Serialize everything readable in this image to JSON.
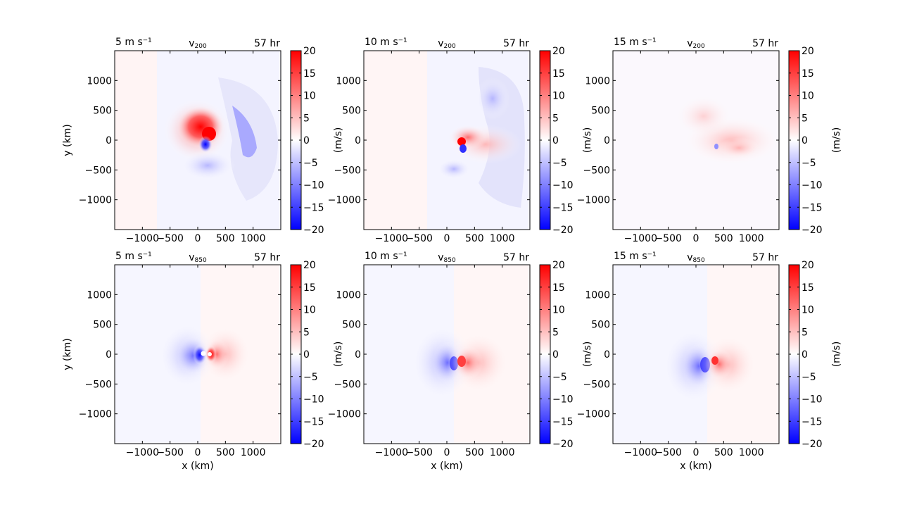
{
  "colorbar": {
    "unit_label": "(m/s)",
    "ticks": [
      20,
      15,
      10,
      5,
      0,
      -5,
      -10,
      -15,
      -20
    ],
    "range": [
      -20,
      20
    ],
    "colormap": "bwr",
    "colors": {
      "min": "#0000ff",
      "mid": "#ffffff",
      "max": "#ff0000"
    }
  },
  "axes": {
    "x_label": "x (km)",
    "y_label": "y (km)",
    "x_ticks": [
      "−1000",
      "−500",
      "0",
      "500",
      "1000"
    ],
    "y_ticks": [
      "1000",
      "500",
      "0",
      "−500",
      "−1000"
    ],
    "xlim": [
      -1500,
      1500
    ],
    "ylim": [
      -1500,
      1500
    ]
  },
  "chart_data": [
    {
      "type": "heatmap",
      "row": 0,
      "col": 0,
      "left_title": "5 m s⁻¹",
      "center_title": "v",
      "center_sub": "200",
      "right_title": "57 hr",
      "vmin": -20,
      "vmax": 20,
      "show_ylabel": true,
      "show_xlabel": false
    },
    {
      "type": "heatmap",
      "row": 0,
      "col": 1,
      "left_title": "10 m s⁻¹",
      "center_title": "v",
      "center_sub": "200",
      "right_title": "57 hr",
      "vmin": -20,
      "vmax": 20,
      "show_ylabel": false,
      "show_xlabel": false
    },
    {
      "type": "heatmap",
      "row": 0,
      "col": 2,
      "left_title": "15 m s⁻¹",
      "center_title": "v",
      "center_sub": "200",
      "right_title": "57 hr",
      "vmin": -20,
      "vmax": 20,
      "show_ylabel": false,
      "show_xlabel": false
    },
    {
      "type": "heatmap",
      "row": 1,
      "col": 0,
      "left_title": "5 m s⁻¹",
      "center_title": "v",
      "center_sub": "850",
      "right_title": "57 hr",
      "vmin": -20,
      "vmax": 20,
      "show_ylabel": true,
      "show_xlabel": true
    },
    {
      "type": "heatmap",
      "row": 1,
      "col": 1,
      "left_title": "10 m s⁻¹",
      "center_title": "v",
      "center_sub": "850",
      "right_title": "57 hr",
      "vmin": -20,
      "vmax": 20,
      "show_ylabel": false,
      "show_xlabel": true
    },
    {
      "type": "heatmap",
      "row": 1,
      "col": 2,
      "left_title": "15 m s⁻¹",
      "center_title": "v",
      "center_sub": "850",
      "right_title": "57 hr",
      "vmin": -20,
      "vmax": 20,
      "show_ylabel": false,
      "show_xlabel": true
    }
  ]
}
